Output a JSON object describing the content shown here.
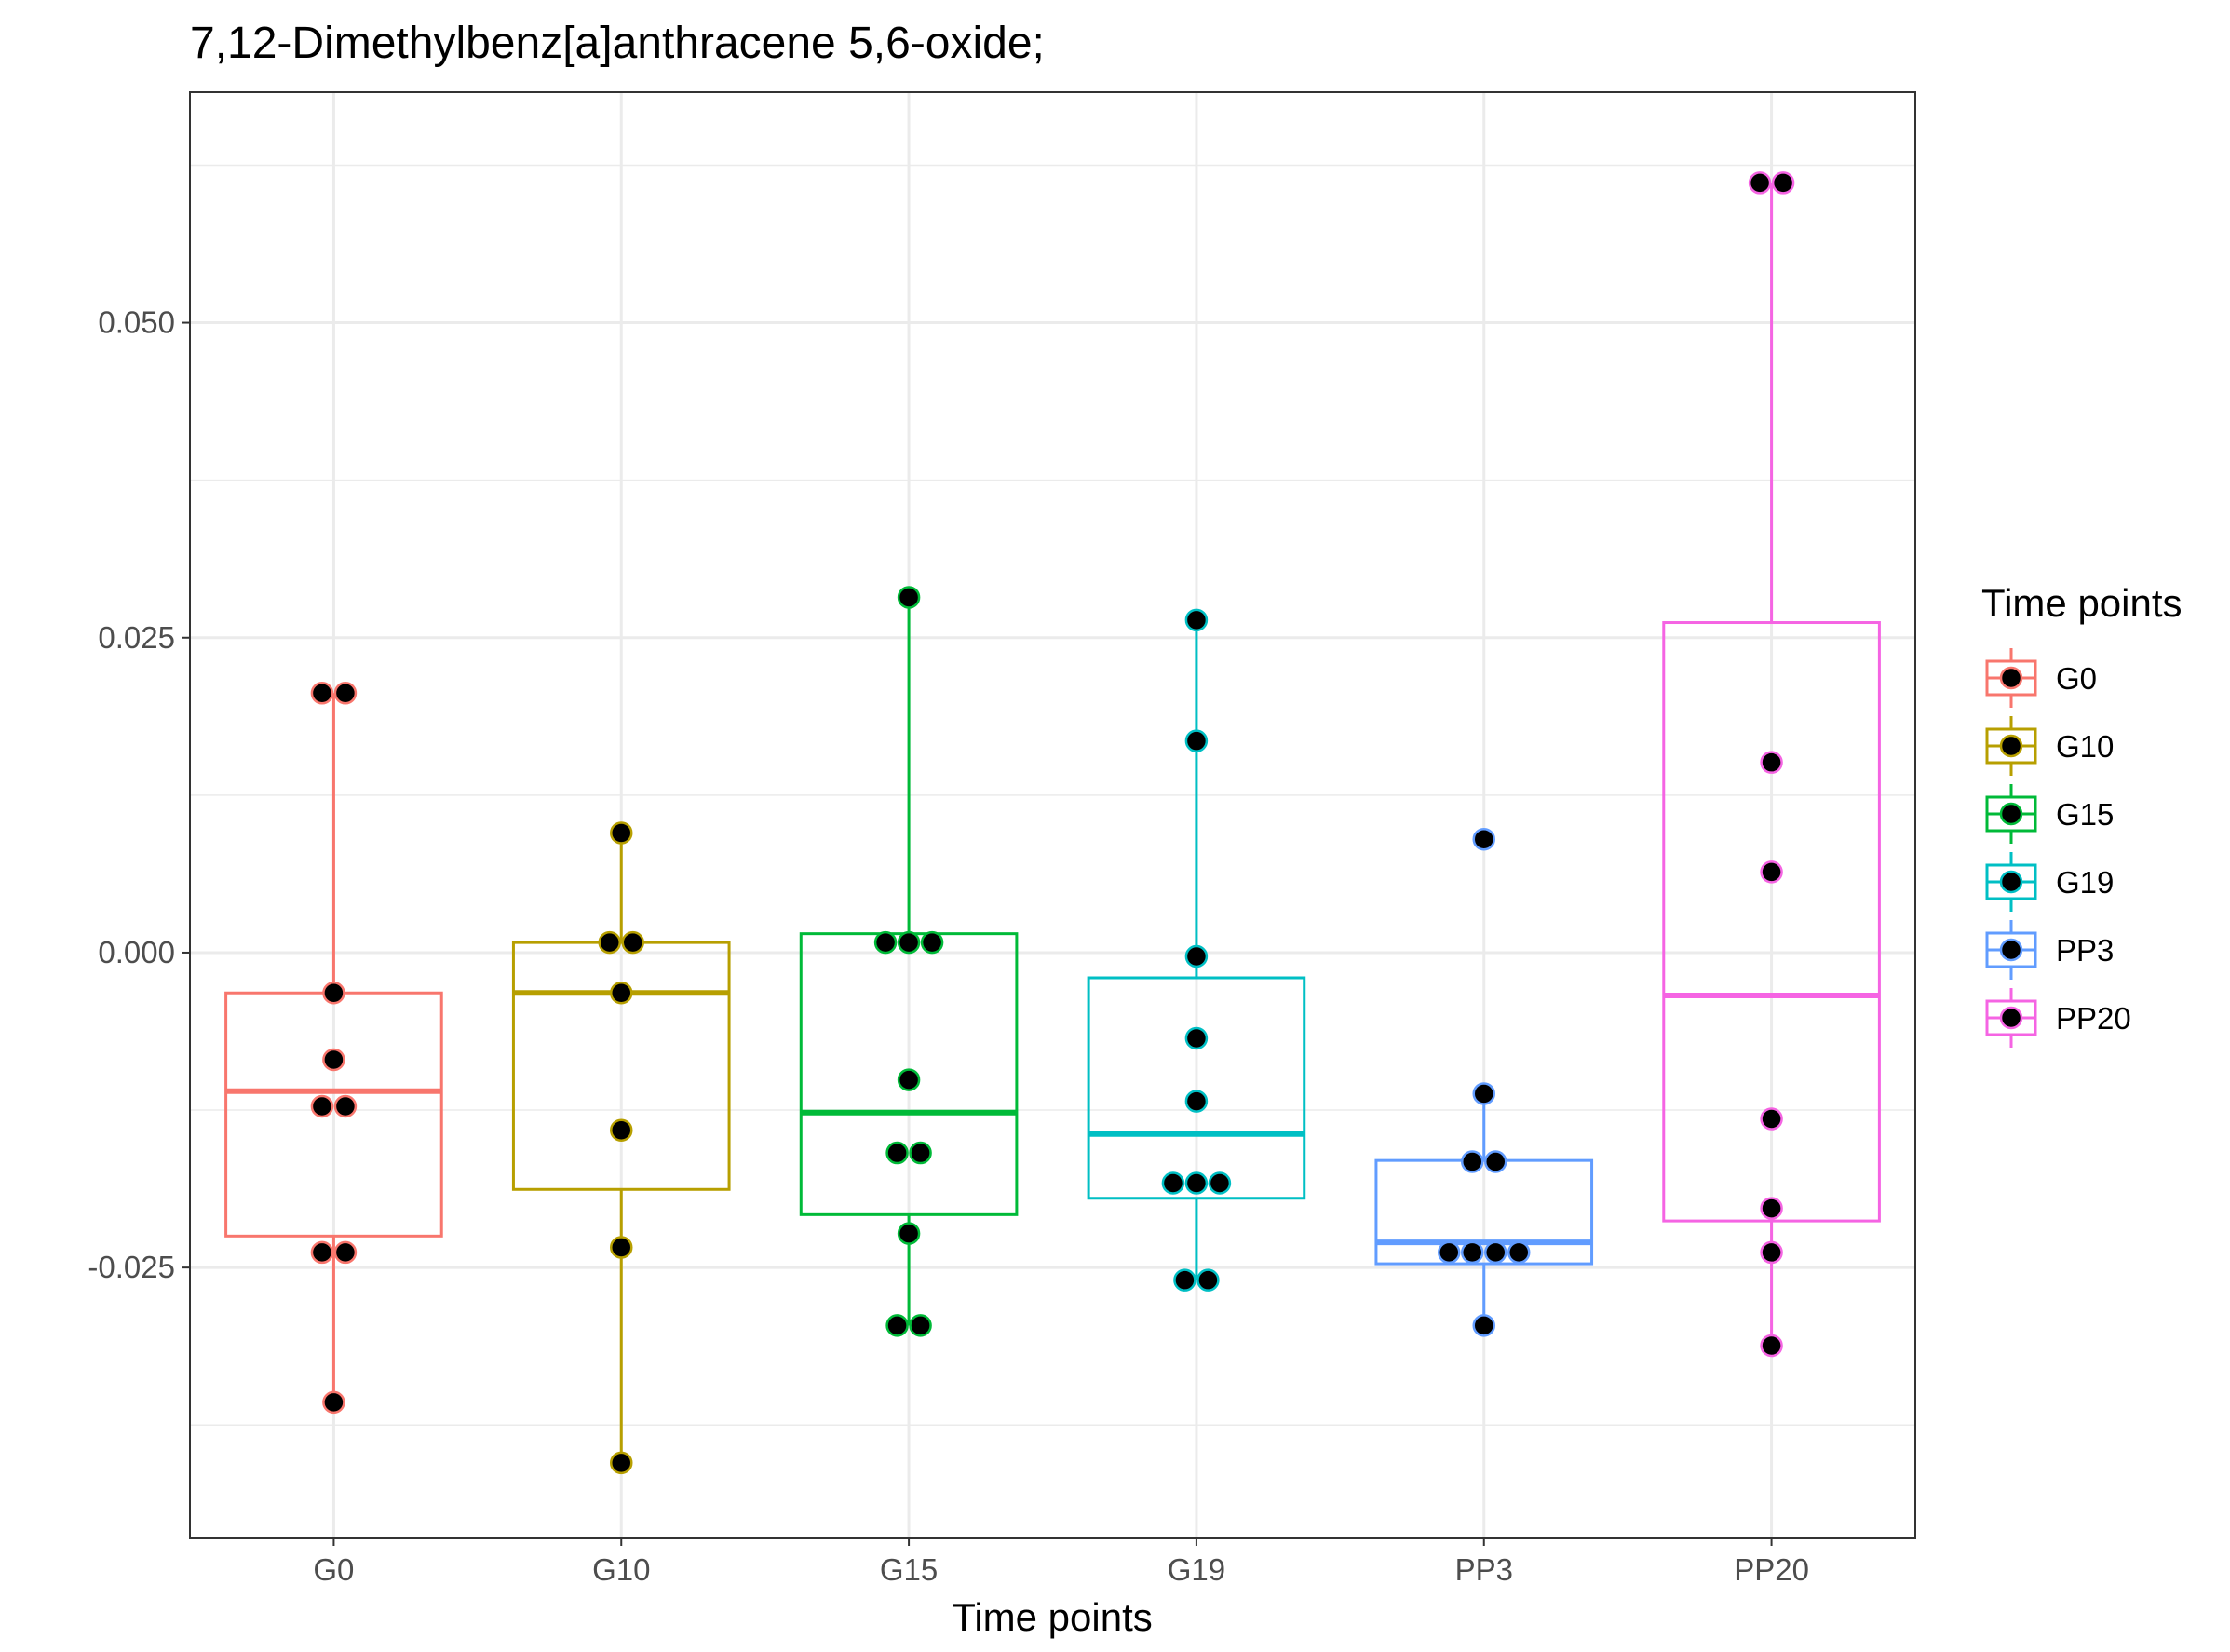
{
  "chart_data": {
    "type": "box",
    "title": "7,12-Dimethylbenz[a]anthracene 5,6-oxide;",
    "xlabel": "Time points",
    "ylabel": "",
    "ylim": [
      -0.0465,
      0.0683
    ],
    "yticks": [
      -0.025,
      0.0,
      0.025,
      0.05
    ],
    "ytick_labels": [
      "-0.025",
      "0.000",
      "0.025",
      "0.050"
    ],
    "categories": [
      "G0",
      "G10",
      "G15",
      "G19",
      "PP3",
      "PP20"
    ],
    "grid": true,
    "legend": {
      "title": "Time points",
      "position": "right",
      "entries": [
        "G0",
        "G10",
        "G15",
        "G19",
        "PP3",
        "PP20"
      ]
    },
    "series": [
      {
        "name": "G0",
        "color": "#F8766D",
        "box": {
          "q1": -0.0225,
          "median": -0.011,
          "q3": -0.0032,
          "whisker_low": -0.0357,
          "whisker_high": 0.0206
        },
        "points": [
          0.0206,
          0.0206,
          -0.0032,
          -0.0085,
          -0.0122,
          -0.0122,
          -0.0238,
          -0.0238,
          -0.0357
        ]
      },
      {
        "name": "G10",
        "color": "#B79F00",
        "box": {
          "q1": -0.0188,
          "median": -0.0032,
          "q3": 0.0008,
          "whisker_low": -0.0405,
          "whisker_high": 0.0095
        },
        "points": [
          0.0095,
          0.0008,
          0.0008,
          -0.0032,
          -0.0141,
          -0.0234,
          -0.0405
        ]
      },
      {
        "name": "G15",
        "color": "#00BA38",
        "box": {
          "q1": -0.0208,
          "median": -0.0127,
          "q3": 0.0015,
          "whisker_low": -0.0296,
          "whisker_high": 0.0282
        },
        "points": [
          0.0282,
          0.0008,
          0.0008,
          0.0008,
          -0.0101,
          -0.0159,
          -0.0159,
          -0.0223,
          -0.0296,
          -0.0296
        ]
      },
      {
        "name": "G19",
        "color": "#00BFC4",
        "box": {
          "q1": -0.0195,
          "median": -0.0144,
          "q3": -0.002,
          "whisker_low": -0.026,
          "whisker_high": 0.0264
        },
        "points": [
          0.0264,
          0.0168,
          -0.0003,
          -0.0068,
          -0.0118,
          -0.0183,
          -0.0183,
          -0.0183,
          -0.026,
          -0.026
        ]
      },
      {
        "name": "PP3",
        "color": "#619CFF",
        "box": {
          "q1": -0.0247,
          "median": -0.023,
          "q3": -0.0165,
          "whisker_low": -0.0296,
          "whisker_high": -0.0112
        },
        "points": [
          0.009,
          -0.0112,
          -0.0166,
          -0.0166,
          -0.0238,
          -0.0238,
          -0.0238,
          -0.0238,
          -0.0296
        ]
      },
      {
        "name": "PP20",
        "color": "#F564E3",
        "box": {
          "q1": -0.0213,
          "median": -0.0034,
          "q3": 0.0262,
          "whisker_low": -0.0312,
          "whisker_high": 0.0611
        },
        "points": [
          0.0611,
          0.0611,
          0.0151,
          0.0064,
          -0.0132,
          -0.0203,
          -0.0238,
          -0.0312
        ]
      }
    ]
  }
}
